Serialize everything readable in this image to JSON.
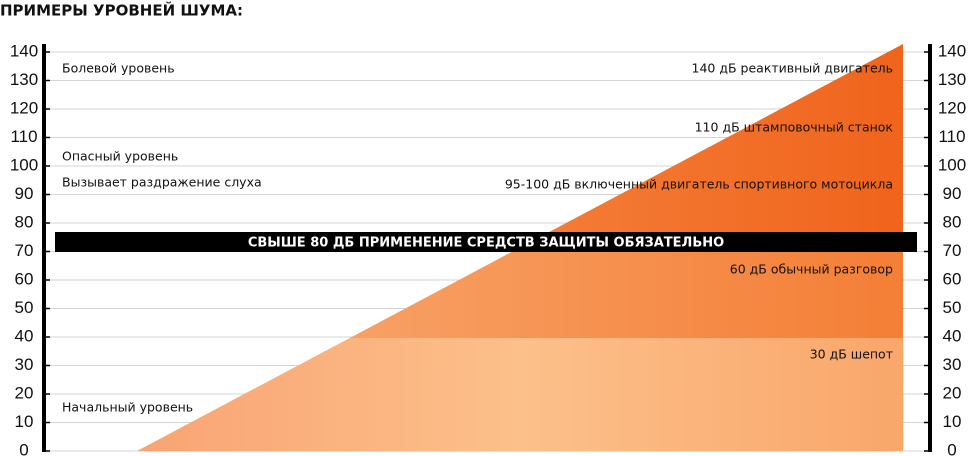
{
  "chart_data": {
    "type": "scale",
    "title": "ПРИМЕРЫ УРОВНЕЙ ШУМА:",
    "ylim": [
      0,
      140
    ],
    "yticks": [
      0,
      10,
      20,
      30,
      40,
      50,
      60,
      70,
      80,
      90,
      100,
      110,
      120,
      130,
      140
    ],
    "grid": true,
    "banner": "СВЫШЕ 80 ДБ ПРИМЕНЕНИЕ СРЕДСТВ ЗАЩИТЫ ОБЯЗАТЕЛЬНО",
    "left_annotations": [
      "Болевой уровень",
      "Опасный уровень",
      "Вызывает раздражение слуха",
      "Начальный уровень"
    ],
    "right_annotations": [
      "140 дБ реактивный двигатель",
      "110 дБ штамповочный станок",
      "95-100 дБ включенный двигатель спортивного мотоцикла",
      "60 дБ обычный разговор",
      "30 дБ шепот"
    ]
  }
}
